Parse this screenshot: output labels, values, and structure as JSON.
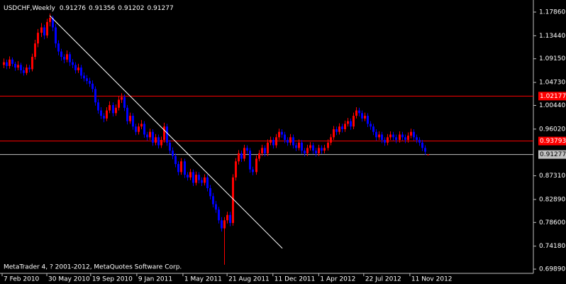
{
  "chart_data": {
    "type": "candlestick",
    "title": "USDCHF,Weekly",
    "footer": "MetaTrader 4, ? 2001-2012, MetaQuotes Software Corp.",
    "up_color": "#ff0000",
    "down_color": "#0000ff",
    "frame_color": "#c0c0c0",
    "xlim": [
      -0.5,
      184.9
    ],
    "ylim": [
      0.691,
      1.1945
    ],
    "yticks": [
      {
        "value": 1.1786,
        "label": "1.17860"
      },
      {
        "value": 1.1344,
        "label": "1.13440"
      },
      {
        "value": 1.0915,
        "label": "1.09150"
      },
      {
        "value": 1.0473,
        "label": "1.04730"
      },
      {
        "value": 1.0044,
        "label": "1.00440"
      },
      {
        "value": 0.9602,
        "label": "0.96020"
      },
      {
        "value": 0.8731,
        "label": "0.87310"
      },
      {
        "value": 0.8289,
        "label": "0.82890"
      },
      {
        "value": 0.786,
        "label": "0.78600"
      },
      {
        "value": 0.7418,
        "label": "0.74180"
      },
      {
        "value": 0.6989,
        "label": "0.69890"
      }
    ],
    "xticks": [
      {
        "value": -0.5,
        "label": "7 Feb 2010"
      },
      {
        "value": 15.1,
        "label": "30 May 2010"
      },
      {
        "value": 30.4,
        "label": "19 Sep 2010"
      },
      {
        "value": 46.5,
        "label": "9 Jan 2011"
      },
      {
        "value": 62.6,
        "label": "1 May 2011"
      },
      {
        "value": 78,
        "label": "21 Aug 2011"
      },
      {
        "value": 94,
        "label": "11 Dec 2011"
      },
      {
        "value": 110,
        "label": "1 Apr 2012"
      },
      {
        "value": 125.7,
        "label": "22 Jul 2012"
      },
      {
        "value": 141.8,
        "label": "11 Nov 2012"
      }
    ],
    "hlines": [
      {
        "value": 1.02177,
        "color": "#ff0000"
      },
      {
        "value": 0.93793,
        "color": "#ff0000"
      },
      {
        "value": 0.91277,
        "color": "#c0c0c0"
      }
    ],
    "trendline": {
      "x": [
        16.1,
        97.3
      ],
      "y": [
        1.172,
        0.7377
      ],
      "color": "#ffffff"
    },
    "ohlc": [
      [
        1.08,
        1.092,
        1.074,
        1.085
      ],
      [
        1.085,
        1.09,
        1.072,
        1.078
      ],
      [
        1.078,
        1.096,
        1.073,
        1.09
      ],
      [
        1.09,
        1.094,
        1.077,
        1.082
      ],
      [
        1.082,
        1.086,
        1.069,
        1.075
      ],
      [
        1.075,
        1.087,
        1.07,
        1.08
      ],
      [
        1.08,
        1.084,
        1.064,
        1.07
      ],
      [
        1.07,
        1.076,
        1.06,
        1.065
      ],
      [
        1.065,
        1.081,
        1.061,
        1.075
      ],
      [
        1.075,
        1.08,
        1.066,
        1.072
      ],
      [
        1.072,
        1.101,
        1.068,
        1.095
      ],
      [
        1.095,
        1.127,
        1.09,
        1.12
      ],
      [
        1.12,
        1.147,
        1.113,
        1.14
      ],
      [
        1.14,
        1.158,
        1.132,
        1.15
      ],
      [
        1.15,
        1.155,
        1.128,
        1.135
      ],
      [
        1.135,
        1.166,
        1.13,
        1.16
      ],
      [
        1.16,
        1.176,
        1.152,
        1.168
      ],
      [
        1.168,
        1.172,
        1.143,
        1.15
      ],
      [
        1.15,
        1.156,
        1.112,
        1.12
      ],
      [
        1.12,
        1.126,
        1.098,
        1.105
      ],
      [
        1.105,
        1.11,
        1.088,
        1.095
      ],
      [
        1.095,
        1.1,
        1.083,
        1.09
      ],
      [
        1.09,
        1.107,
        1.085,
        1.1
      ],
      [
        1.1,
        1.104,
        1.078,
        1.085
      ],
      [
        1.085,
        1.091,
        1.074,
        1.08
      ],
      [
        1.08,
        1.085,
        1.064,
        1.07
      ],
      [
        1.07,
        1.082,
        1.065,
        1.075
      ],
      [
        1.075,
        1.08,
        1.054,
        1.06
      ],
      [
        1.06,
        1.066,
        1.049,
        1.055
      ],
      [
        1.055,
        1.061,
        1.044,
        1.05
      ],
      [
        1.05,
        1.056,
        1.039,
        1.045
      ],
      [
        1.045,
        1.051,
        1.029,
        1.035
      ],
      [
        1.035,
        1.04,
        1.004,
        1.01
      ],
      [
        1.01,
        1.016,
        0.989,
        0.995
      ],
      [
        0.995,
        1.001,
        0.979,
        0.985
      ],
      [
        0.985,
        0.99,
        0.973,
        0.98
      ],
      [
        0.98,
        1.001,
        0.975,
        0.995
      ],
      [
        0.995,
        1.012,
        0.99,
        1.005
      ],
      [
        1.005,
        1.01,
        0.984,
        0.99
      ],
      [
        0.99,
        1.006,
        0.985,
        1.0
      ],
      [
        1.0,
        1.021,
        0.995,
        1.015
      ],
      [
        1.015,
        1.027,
        1.009,
        1.02
      ],
      [
        1.02,
        1.025,
        0.994,
        1.0
      ],
      [
        1.0,
        1.005,
        0.969,
        0.975
      ],
      [
        0.975,
        0.991,
        0.97,
        0.985
      ],
      [
        0.985,
        0.99,
        0.959,
        0.965
      ],
      [
        0.965,
        0.97,
        0.949,
        0.955
      ],
      [
        0.955,
        0.971,
        0.95,
        0.965
      ],
      [
        0.965,
        0.977,
        0.96,
        0.97
      ],
      [
        0.97,
        0.975,
        0.944,
        0.95
      ],
      [
        0.95,
        0.955,
        0.939,
        0.945
      ],
      [
        0.945,
        0.961,
        0.94,
        0.955
      ],
      [
        0.955,
        0.96,
        0.929,
        0.935
      ],
      [
        0.935,
        0.951,
        0.93,
        0.945
      ],
      [
        0.945,
        0.95,
        0.924,
        0.93
      ],
      [
        0.93,
        0.946,
        0.925,
        0.94
      ],
      [
        0.94,
        0.972,
        0.935,
        0.965
      ],
      [
        0.965,
        0.97,
        0.929,
        0.935
      ],
      [
        0.935,
        0.94,
        0.914,
        0.92
      ],
      [
        0.92,
        0.926,
        0.904,
        0.91
      ],
      [
        0.91,
        0.915,
        0.889,
        0.895
      ],
      [
        0.895,
        0.9,
        0.874,
        0.88
      ],
      [
        0.88,
        0.906,
        0.875,
        0.9
      ],
      [
        0.9,
        0.905,
        0.869,
        0.875
      ],
      [
        0.875,
        0.88,
        0.864,
        0.87
      ],
      [
        0.87,
        0.886,
        0.865,
        0.88
      ],
      [
        0.88,
        0.885,
        0.854,
        0.86
      ],
      [
        0.86,
        0.881,
        0.855,
        0.875
      ],
      [
        0.875,
        0.88,
        0.859,
        0.865
      ],
      [
        0.865,
        0.87,
        0.854,
        0.86
      ],
      [
        0.86,
        0.876,
        0.855,
        0.87
      ],
      [
        0.87,
        0.875,
        0.844,
        0.85
      ],
      [
        0.85,
        0.856,
        0.829,
        0.835
      ],
      [
        0.835,
        0.841,
        0.814,
        0.82
      ],
      [
        0.82,
        0.826,
        0.804,
        0.81
      ],
      [
        0.81,
        0.815,
        0.784,
        0.79
      ],
      [
        0.79,
        0.796,
        0.769,
        0.775
      ],
      [
        0.775,
        0.796,
        0.707,
        0.79
      ],
      [
        0.79,
        0.806,
        0.784,
        0.8
      ],
      [
        0.8,
        0.806,
        0.779,
        0.785
      ],
      [
        0.785,
        0.876,
        0.78,
        0.87
      ],
      [
        0.87,
        0.906,
        0.864,
        0.9
      ],
      [
        0.9,
        0.921,
        0.894,
        0.915
      ],
      [
        0.915,
        0.92,
        0.899,
        0.905
      ],
      [
        0.905,
        0.931,
        0.9,
        0.925
      ],
      [
        0.925,
        0.93,
        0.914,
        0.92
      ],
      [
        0.92,
        0.925,
        0.879,
        0.885
      ],
      [
        0.885,
        0.89,
        0.874,
        0.88
      ],
      [
        0.88,
        0.911,
        0.875,
        0.905
      ],
      [
        0.905,
        0.921,
        0.9,
        0.915
      ],
      [
        0.915,
        0.931,
        0.91,
        0.925
      ],
      [
        0.925,
        0.93,
        0.909,
        0.915
      ],
      [
        0.915,
        0.941,
        0.91,
        0.935
      ],
      [
        0.935,
        0.946,
        0.93,
        0.94
      ],
      [
        0.94,
        0.945,
        0.924,
        0.93
      ],
      [
        0.93,
        0.951,
        0.925,
        0.945
      ],
      [
        0.945,
        0.961,
        0.94,
        0.955
      ],
      [
        0.955,
        0.96,
        0.944,
        0.95
      ],
      [
        0.95,
        0.955,
        0.934,
        0.94
      ],
      [
        0.94,
        0.945,
        0.929,
        0.935
      ],
      [
        0.935,
        0.951,
        0.93,
        0.945
      ],
      [
        0.945,
        0.95,
        0.924,
        0.93
      ],
      [
        0.93,
        0.935,
        0.919,
        0.925
      ],
      [
        0.925,
        0.941,
        0.92,
        0.935
      ],
      [
        0.935,
        0.94,
        0.914,
        0.92
      ],
      [
        0.92,
        0.925,
        0.909,
        0.915
      ],
      [
        0.915,
        0.931,
        0.91,
        0.925
      ],
      [
        0.925,
        0.936,
        0.92,
        0.93
      ],
      [
        0.93,
        0.935,
        0.914,
        0.92
      ],
      [
        0.92,
        0.925,
        0.909,
        0.915
      ],
      [
        0.915,
        0.931,
        0.91,
        0.925
      ],
      [
        0.925,
        0.93,
        0.914,
        0.92
      ],
      [
        0.92,
        0.931,
        0.915,
        0.925
      ],
      [
        0.925,
        0.941,
        0.92,
        0.935
      ],
      [
        0.935,
        0.951,
        0.93,
        0.945
      ],
      [
        0.945,
        0.966,
        0.94,
        0.96
      ],
      [
        0.96,
        0.965,
        0.949,
        0.955
      ],
      [
        0.955,
        0.971,
        0.95,
        0.965
      ],
      [
        0.965,
        0.97,
        0.954,
        0.96
      ],
      [
        0.96,
        0.976,
        0.955,
        0.97
      ],
      [
        0.97,
        0.981,
        0.965,
        0.975
      ],
      [
        0.975,
        0.98,
        0.959,
        0.965
      ],
      [
        0.965,
        0.991,
        0.96,
        0.985
      ],
      [
        0.985,
        1.001,
        0.98,
        0.995
      ],
      [
        0.995,
        1.0,
        0.984,
        0.99
      ],
      [
        0.99,
        0.995,
        0.974,
        0.98
      ],
      [
        0.98,
        0.991,
        0.975,
        0.985
      ],
      [
        0.985,
        0.99,
        0.964,
        0.97
      ],
      [
        0.97,
        0.975,
        0.959,
        0.965
      ],
      [
        0.965,
        0.97,
        0.949,
        0.955
      ],
      [
        0.955,
        0.96,
        0.939,
        0.945
      ],
      [
        0.945,
        0.956,
        0.94,
        0.95
      ],
      [
        0.95,
        0.955,
        0.934,
        0.94
      ],
      [
        0.94,
        0.945,
        0.929,
        0.935
      ],
      [
        0.935,
        0.951,
        0.93,
        0.945
      ],
      [
        0.945,
        0.956,
        0.94,
        0.95
      ],
      [
        0.95,
        0.955,
        0.939,
        0.945
      ],
      [
        0.945,
        0.95,
        0.934,
        0.94
      ],
      [
        0.94,
        0.956,
        0.935,
        0.95
      ],
      [
        0.95,
        0.955,
        0.939,
        0.945
      ],
      [
        0.945,
        0.95,
        0.934,
        0.94
      ],
      [
        0.94,
        0.954,
        0.935,
        0.948
      ],
      [
        0.948,
        0.961,
        0.943,
        0.955
      ],
      [
        0.955,
        0.96,
        0.939,
        0.945
      ],
      [
        0.945,
        0.95,
        0.934,
        0.94
      ],
      [
        0.94,
        0.945,
        0.929,
        0.935
      ],
      [
        0.935,
        0.94,
        0.919,
        0.925
      ],
      [
        0.925,
        0.93,
        0.912,
        0.918
      ],
      [
        0.91276,
        0.91356,
        0.91202,
        0.91277
      ]
    ]
  }
}
